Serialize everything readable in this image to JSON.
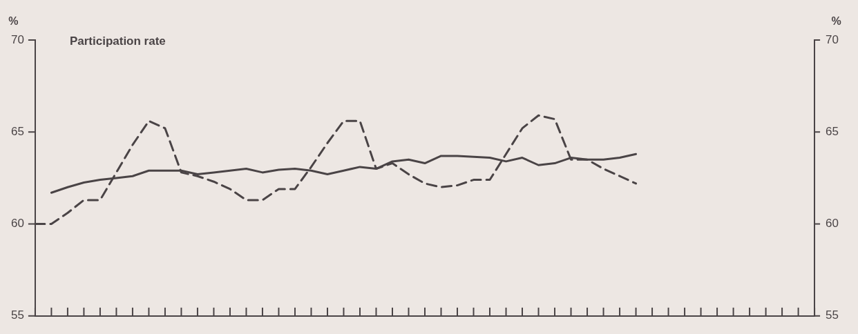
{
  "chart_data": {
    "type": "line",
    "title": "Participation rate",
    "ylabel": "%",
    "y2label": "%",
    "categories": [
      null,
      null,
      null,
      null,
      null,
      null,
      null,
      null,
      null,
      null,
      null,
      null,
      null,
      null,
      null,
      null,
      null,
      null,
      null,
      null,
      null,
      null,
      null,
      null,
      null,
      null,
      null,
      null,
      null,
      null,
      null,
      null,
      null,
      null,
      null,
      null,
      null,
      null,
      null,
      null,
      null,
      null,
      null,
      null,
      null,
      null,
      null,
      null,
      null
    ],
    "ylim": [
      55,
      70
    ],
    "yticks": [
      55,
      60,
      65,
      70
    ],
    "y2lim": [
      55,
      70
    ],
    "y2ticks": [
      55,
      60,
      65,
      70
    ],
    "tick_labels": "y",
    "grid": false,
    "legend": false,
    "marker": "none",
    "series": [
      {
        "color": "#4a4446",
        "line_style": "solid",
        "values": [
          null,
          61.7,
          62.0,
          62.25,
          62.4,
          62.5,
          62.6,
          62.9,
          62.9,
          62.9,
          62.7,
          62.8,
          62.9,
          63.0,
          62.8,
          62.95,
          63.0,
          62.9,
          62.7,
          62.9,
          63.1,
          63.0,
          63.4,
          63.5,
          63.3,
          63.7,
          63.7,
          63.65,
          63.6,
          63.4,
          63.6,
          63.2,
          63.3,
          63.6,
          63.5,
          63.5,
          63.6,
          63.8,
          null,
          null,
          null,
          null,
          null,
          null,
          null,
          null,
          null,
          null,
          null
        ]
      },
      {
        "color": "#4a4446",
        "line_style": "dashed",
        "values": [
          60.0,
          60.0,
          60.6,
          61.3,
          61.3,
          62.8,
          64.3,
          65.6,
          65.2,
          62.8,
          62.6,
          62.3,
          61.9,
          61.3,
          61.3,
          61.9,
          61.9,
          63.1,
          64.4,
          65.6,
          65.6,
          63.0,
          63.3,
          62.7,
          62.2,
          62.0,
          62.1,
          62.4,
          62.4,
          63.8,
          65.2,
          65.9,
          65.7,
          63.5,
          63.5,
          63.0,
          62.6,
          62.2,
          null,
          null,
          null,
          null,
          null,
          null,
          null,
          null,
          null,
          null,
          null
        ]
      }
    ]
  }
}
